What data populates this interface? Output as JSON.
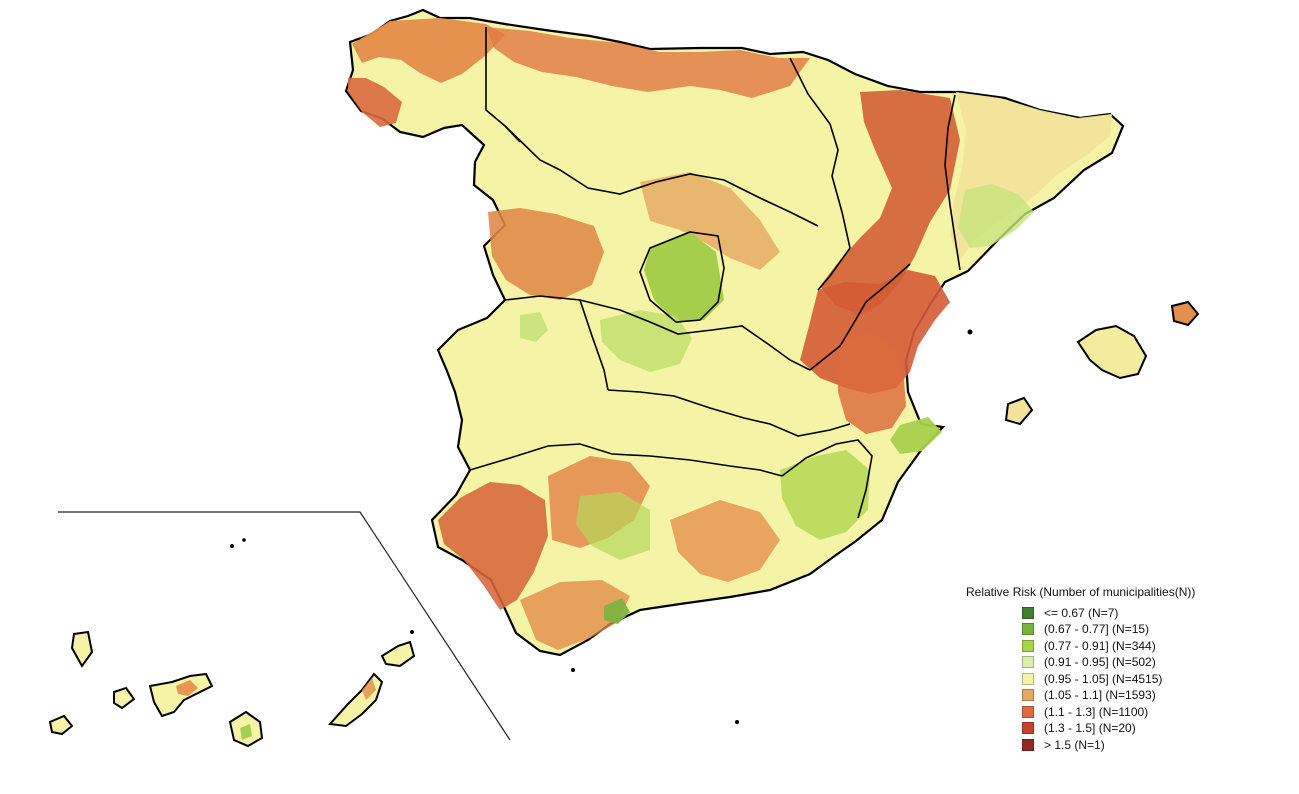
{
  "legend": {
    "title": "Relative Risk (Number of municipalities(N))",
    "items": [
      {
        "label": "<=  0.67 (N=7)",
        "color": "#3f7f2f"
      },
      {
        "label": "(0.67 - 0.77] (N=15)",
        "color": "#76b33d"
      },
      {
        "label": "(0.77 - 0.91] (N=344)",
        "color": "#a9d34a"
      },
      {
        "label": "(0.91 - 0.95] (N=502)",
        "color": "#dbeeae"
      },
      {
        "label": "(0.95 - 1.05] (N=4515)",
        "color": "#f5f3a6"
      },
      {
        "label": "(1.05 - 1.1] (N=1593)",
        "color": "#e7a85d"
      },
      {
        "label": "(1.1 - 1.3] (N=1100)",
        "color": "#dc6b3e"
      },
      {
        "label": "(1.3 - 1.5] (N=20)",
        "color": "#c3452f"
      },
      {
        "label": ">  1.5 (N=1)",
        "color": "#8f2924"
      }
    ]
  }
}
